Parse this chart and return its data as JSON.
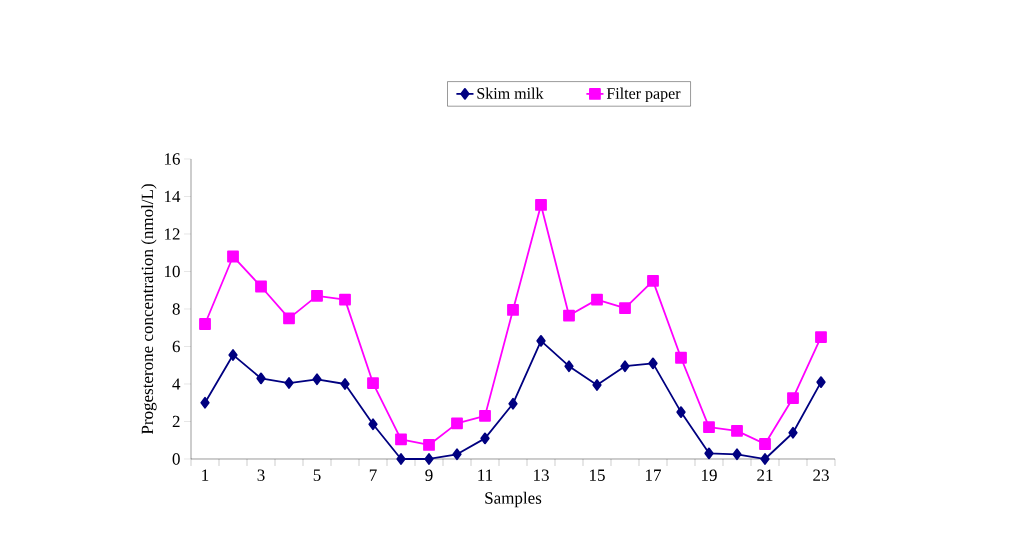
{
  "chart_data": {
    "type": "line",
    "xlabel": "Samples",
    "ylabel": "Progesterone concentration (nmol/L)",
    "categories": [
      "1",
      null,
      "3",
      null,
      "5",
      null,
      "7",
      null,
      "9",
      null,
      "11",
      null,
      "13",
      null,
      "15",
      null,
      "17",
      null,
      "19",
      null,
      "21",
      null,
      "23"
    ],
    "series": [
      {
        "name": "Skim milk",
        "color": "#000080",
        "marker": "diamond",
        "values": [
          3.0,
          5.55,
          4.3,
          4.05,
          4.25,
          4.0,
          1.85,
          0,
          0,
          0.25,
          1.1,
          2.95,
          6.3,
          4.95,
          3.95,
          4.95,
          5.1,
          2.5,
          0.3,
          0.25,
          0,
          1.4,
          4.1
        ]
      },
      {
        "name": "Filter paper",
        "color": "#ff00ff",
        "marker": "square",
        "values": [
          7.2,
          10.8,
          9.2,
          7.5,
          8.7,
          8.5,
          4.05,
          1.05,
          0.75,
          1.9,
          2.3,
          7.95,
          13.55,
          7.65,
          8.5,
          8.05,
          9.5,
          5.4,
          1.7,
          1.5,
          0.8,
          3.25,
          6.5
        ]
      }
    ],
    "ylim": [
      0,
      16
    ],
    "yticks": [
      0,
      2,
      4,
      6,
      8,
      10,
      12,
      14,
      16
    ],
    "legend": "top",
    "line_style": "solid"
  }
}
